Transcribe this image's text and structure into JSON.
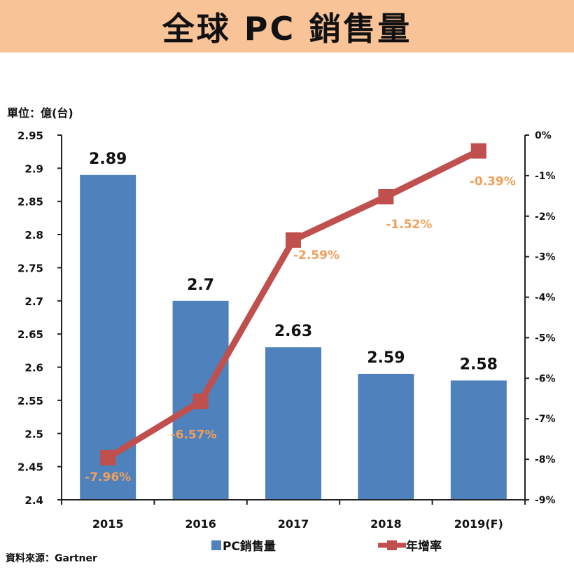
{
  "title": "全球 PC 銷售量",
  "unit_label": "單位：億(台)",
  "source_label": "資料來源：Gartner",
  "colors": {
    "bar": "#4f81bd",
    "line": "#c0504d",
    "rate_label": "#f0a05a",
    "title_band": "#f9c398"
  },
  "chart_data": {
    "type": "bar",
    "categories": [
      "2015",
      "2016",
      "2017",
      "2018",
      "2019(F)"
    ],
    "series": [
      {
        "name": "PC銷售量",
        "type": "bar",
        "axis": "left",
        "values": [
          2.89,
          2.7,
          2.63,
          2.59,
          2.58
        ],
        "labels": [
          "2.89",
          "2.7",
          "2.63",
          "2.59",
          "2.58"
        ]
      },
      {
        "name": "年增率",
        "type": "line",
        "axis": "right",
        "values": [
          -7.96,
          -6.57,
          -2.59,
          -1.52,
          -0.39
        ],
        "labels": [
          "-7.96%",
          "-6.57%",
          "-2.59%",
          "-1.52%",
          "-0.39%"
        ]
      }
    ],
    "y_left": {
      "min": 2.4,
      "max": 2.95,
      "ticks": [
        "2.4",
        "2.45",
        "2.5",
        "2.55",
        "2.6",
        "2.65",
        "2.7",
        "2.75",
        "2.8",
        "2.85",
        "2.9",
        "2.95"
      ]
    },
    "y_right": {
      "min": -9,
      "max": 0,
      "ticks": [
        "0%",
        "-1%",
        "-2%",
        "-3%",
        "-4%",
        "-5%",
        "-6%",
        "-7%",
        "-8%",
        "-9%"
      ]
    },
    "grid": false,
    "legend_position": "bottom"
  }
}
